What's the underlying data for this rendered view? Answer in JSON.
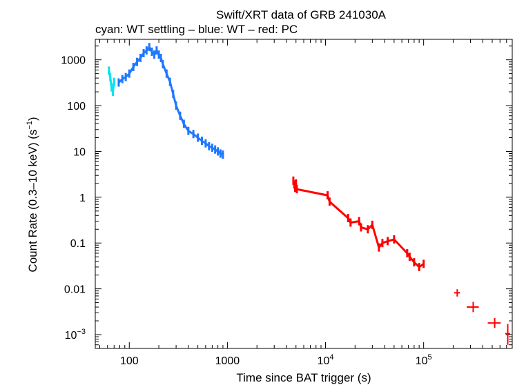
{
  "chart_data": {
    "type": "scatter",
    "title": "Swift/XRT data of GRB 241030A",
    "subtitle": "cyan: WT settling – blue: WT – red: PC",
    "xlabel": "Time since BAT trigger (s)",
    "ylabel_main": "Count Rate (0.3–10 keV) (s",
    "ylabel_sup": "−1",
    "ylabel_end": ")",
    "x_scale": "log",
    "y_scale": "log",
    "xlim": [
      45,
      800000
    ],
    "ylim": [
      0.0005,
      2800
    ],
    "x_ticks": [
      {
        "value": 100,
        "base": "100",
        "sup": ""
      },
      {
        "value": 1000,
        "base": "1000",
        "sup": ""
      },
      {
        "value": 10000,
        "base": "10",
        "sup": "4"
      },
      {
        "value": 100000,
        "base": "10",
        "sup": "5"
      }
    ],
    "y_ticks": [
      {
        "value": 1000,
        "base": "1000",
        "sup": ""
      },
      {
        "value": 100,
        "base": "100",
        "sup": ""
      },
      {
        "value": 10,
        "base": "10",
        "sup": ""
      },
      {
        "value": 1,
        "base": "1",
        "sup": ""
      },
      {
        "value": 0.1,
        "base": "0.1",
        "sup": ""
      },
      {
        "value": 0.01,
        "base": "0.01",
        "sup": ""
      },
      {
        "value": 0.001,
        "base": "10",
        "sup": "−3"
      }
    ],
    "series": [
      {
        "name": "WT settling",
        "color": "#00e5ee",
        "points": [
          [
            62,
            580
          ],
          [
            64,
            420
          ],
          [
            66,
            250
          ],
          [
            68,
            200
          ],
          [
            70,
            330
          ]
        ]
      },
      {
        "name": "WT",
        "color": "#1e78ff",
        "points": [
          [
            78,
            320
          ],
          [
            85,
            380
          ],
          [
            92,
            420
          ],
          [
            100,
            500
          ],
          [
            110,
            700
          ],
          [
            120,
            900
          ],
          [
            130,
            1100
          ],
          [
            140,
            1400
          ],
          [
            150,
            1600
          ],
          [
            160,
            1900
          ],
          [
            170,
            1500
          ],
          [
            180,
            1300
          ],
          [
            190,
            1600
          ],
          [
            200,
            1300
          ],
          [
            210,
            1100
          ],
          [
            220,
            800
          ],
          [
            240,
            500
          ],
          [
            260,
            330
          ],
          [
            280,
            180
          ],
          [
            300,
            100
          ],
          [
            330,
            60
          ],
          [
            360,
            40
          ],
          [
            400,
            28
          ],
          [
            450,
            24
          ],
          [
            500,
            20
          ],
          [
            550,
            17
          ],
          [
            600,
            15
          ],
          [
            650,
            13
          ],
          [
            700,
            12
          ],
          [
            750,
            11
          ],
          [
            800,
            10
          ],
          [
            850,
            9
          ],
          [
            900,
            8.5
          ]
        ]
      },
      {
        "name": "PC",
        "color": "#ff0000",
        "points": [
          [
            4700,
            2.3
          ],
          [
            4800,
            1.9
          ],
          [
            4900,
            1.6
          ],
          [
            5000,
            2.0
          ],
          [
            5100,
            1.5
          ],
          [
            10500,
            1.1
          ],
          [
            11000,
            0.8
          ],
          [
            17000,
            0.35
          ],
          [
            18000,
            0.28
          ],
          [
            22000,
            0.3
          ],
          [
            23000,
            0.22
          ],
          [
            27000,
            0.2
          ],
          [
            30000,
            0.25
          ],
          [
            35000,
            0.08
          ],
          [
            38000,
            0.1
          ],
          [
            43000,
            0.11
          ],
          [
            50000,
            0.12
          ],
          [
            68000,
            0.06
          ],
          [
            72000,
            0.05
          ],
          [
            80000,
            0.038
          ],
          [
            90000,
            0.03
          ],
          [
            100000,
            0.035
          ]
        ],
        "error_points": [
          {
            "x": 220000,
            "y": 0.0082,
            "xlo": 205000,
            "xhi": 235000,
            "ylo": 0.0068,
            "yhi": 0.0098
          },
          {
            "x": 320000,
            "y": 0.004,
            "xlo": 275000,
            "xhi": 365000,
            "ylo": 0.0031,
            "yhi": 0.0052
          },
          {
            "x": 530000,
            "y": 0.0018,
            "xlo": 450000,
            "xhi": 610000,
            "ylo": 0.0014,
            "yhi": 0.0023
          },
          {
            "x": 720000,
            "y": 0.00105,
            "xlo": 680000,
            "xhi": 760000,
            "ylo": 0.0006,
            "yhi": 0.0017
          }
        ]
      }
    ]
  }
}
